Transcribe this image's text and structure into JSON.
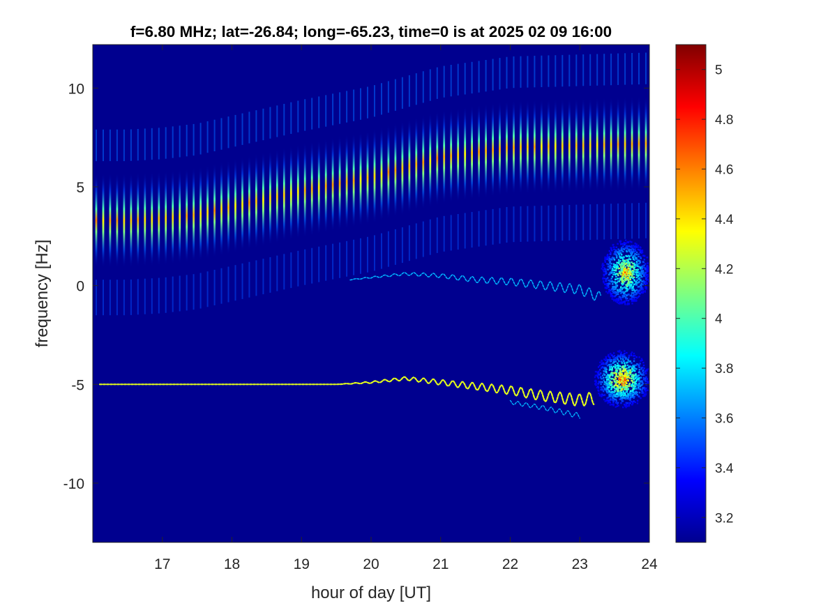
{
  "chart_data": {
    "type": "heatmap",
    "title": "f=6.80 MHz;  lat=-26.84; long=-65.23, time=0 is at 2025 02 09 16:00",
    "xlabel": "hour of day [UT]",
    "ylabel": "frequency [Hz]",
    "xlim": [
      16,
      24
    ],
    "ylim": [
      -13,
      12.2
    ],
    "xticks": [
      17,
      18,
      19,
      20,
      21,
      22,
      23,
      24
    ],
    "xtick_labels": [
      "17",
      "18",
      "19",
      "20",
      "21",
      "22",
      "23",
      "24"
    ],
    "yticks": [
      -10,
      -5,
      0,
      5,
      10
    ],
    "ytick_labels": [
      "-10",
      "-5",
      "0",
      "5",
      "10"
    ],
    "colorbar": {
      "clim": [
        3.1,
        5.1
      ],
      "ticks": [
        3.2,
        3.4,
        3.6,
        3.8,
        4,
        4.2,
        4.4,
        4.6,
        4.8,
        5
      ],
      "tick_labels": [
        "3.2",
        "3.4",
        "3.6",
        "3.8",
        "4",
        "4.2",
        "4.4",
        "4.6",
        "4.8",
        "5"
      ],
      "colormap": "jet"
    },
    "background_value": 3.15,
    "doppler_comb": {
      "description_values": "vertical streaks, one every ~0.1 h",
      "x_start": 16.05,
      "x_end": 23.95,
      "spacing_h": 0.1,
      "center_hz": [
        [
          16.0,
          3.3
        ],
        [
          16.5,
          3.3
        ],
        [
          17.0,
          3.4
        ],
        [
          17.5,
          3.6
        ],
        [
          18.0,
          4.0
        ],
        [
          19.0,
          4.8
        ],
        [
          20.0,
          5.5
        ],
        [
          20.5,
          6.0
        ],
        [
          21.0,
          6.5
        ],
        [
          22.0,
          7.0
        ],
        [
          23.0,
          7.1
        ],
        [
          24.0,
          7.2
        ]
      ],
      "half_width_hz": 2.4,
      "peak_value": 4.6
    },
    "trace_near_zero": {
      "points": [
        [
          19.7,
          0.3
        ],
        [
          20.5,
          0.6
        ],
        [
          21.0,
          0.5
        ],
        [
          21.5,
          0.3
        ],
        [
          22.0,
          0.2
        ],
        [
          22.5,
          0.0
        ],
        [
          23.0,
          -0.2
        ],
        [
          23.3,
          -0.6
        ]
      ],
      "value": 3.7
    },
    "trace_near_minus5": {
      "points": [
        [
          16.1,
          -5.0
        ],
        [
          17.0,
          -5.0
        ],
        [
          18.0,
          -5.0
        ],
        [
          19.0,
          -5.0
        ],
        [
          19.5,
          -5.0
        ],
        [
          20.0,
          -4.9
        ],
        [
          20.5,
          -4.7
        ],
        [
          21.0,
          -4.9
        ],
        [
          21.5,
          -5.1
        ],
        [
          22.0,
          -5.3
        ],
        [
          22.5,
          -5.6
        ],
        [
          23.0,
          -5.8
        ],
        [
          23.2,
          -5.7
        ]
      ],
      "value": 4.3
    },
    "side_trace": {
      "points": [
        [
          22.0,
          -5.9
        ],
        [
          22.5,
          -6.2
        ],
        [
          23.0,
          -6.6
        ]
      ],
      "value": 3.7
    },
    "blobs": [
      {
        "x": [
          23.3,
          24.0
        ],
        "y": [
          -0.8,
          2.5
        ],
        "center": [
          23.65,
          0.7
        ],
        "peak_value": 4.8
      },
      {
        "x": [
          23.2,
          24.0
        ],
        "y": [
          -6.2,
          -3.3
        ],
        "center": [
          23.6,
          -4.7
        ],
        "peak_value": 5.0
      }
    ]
  }
}
